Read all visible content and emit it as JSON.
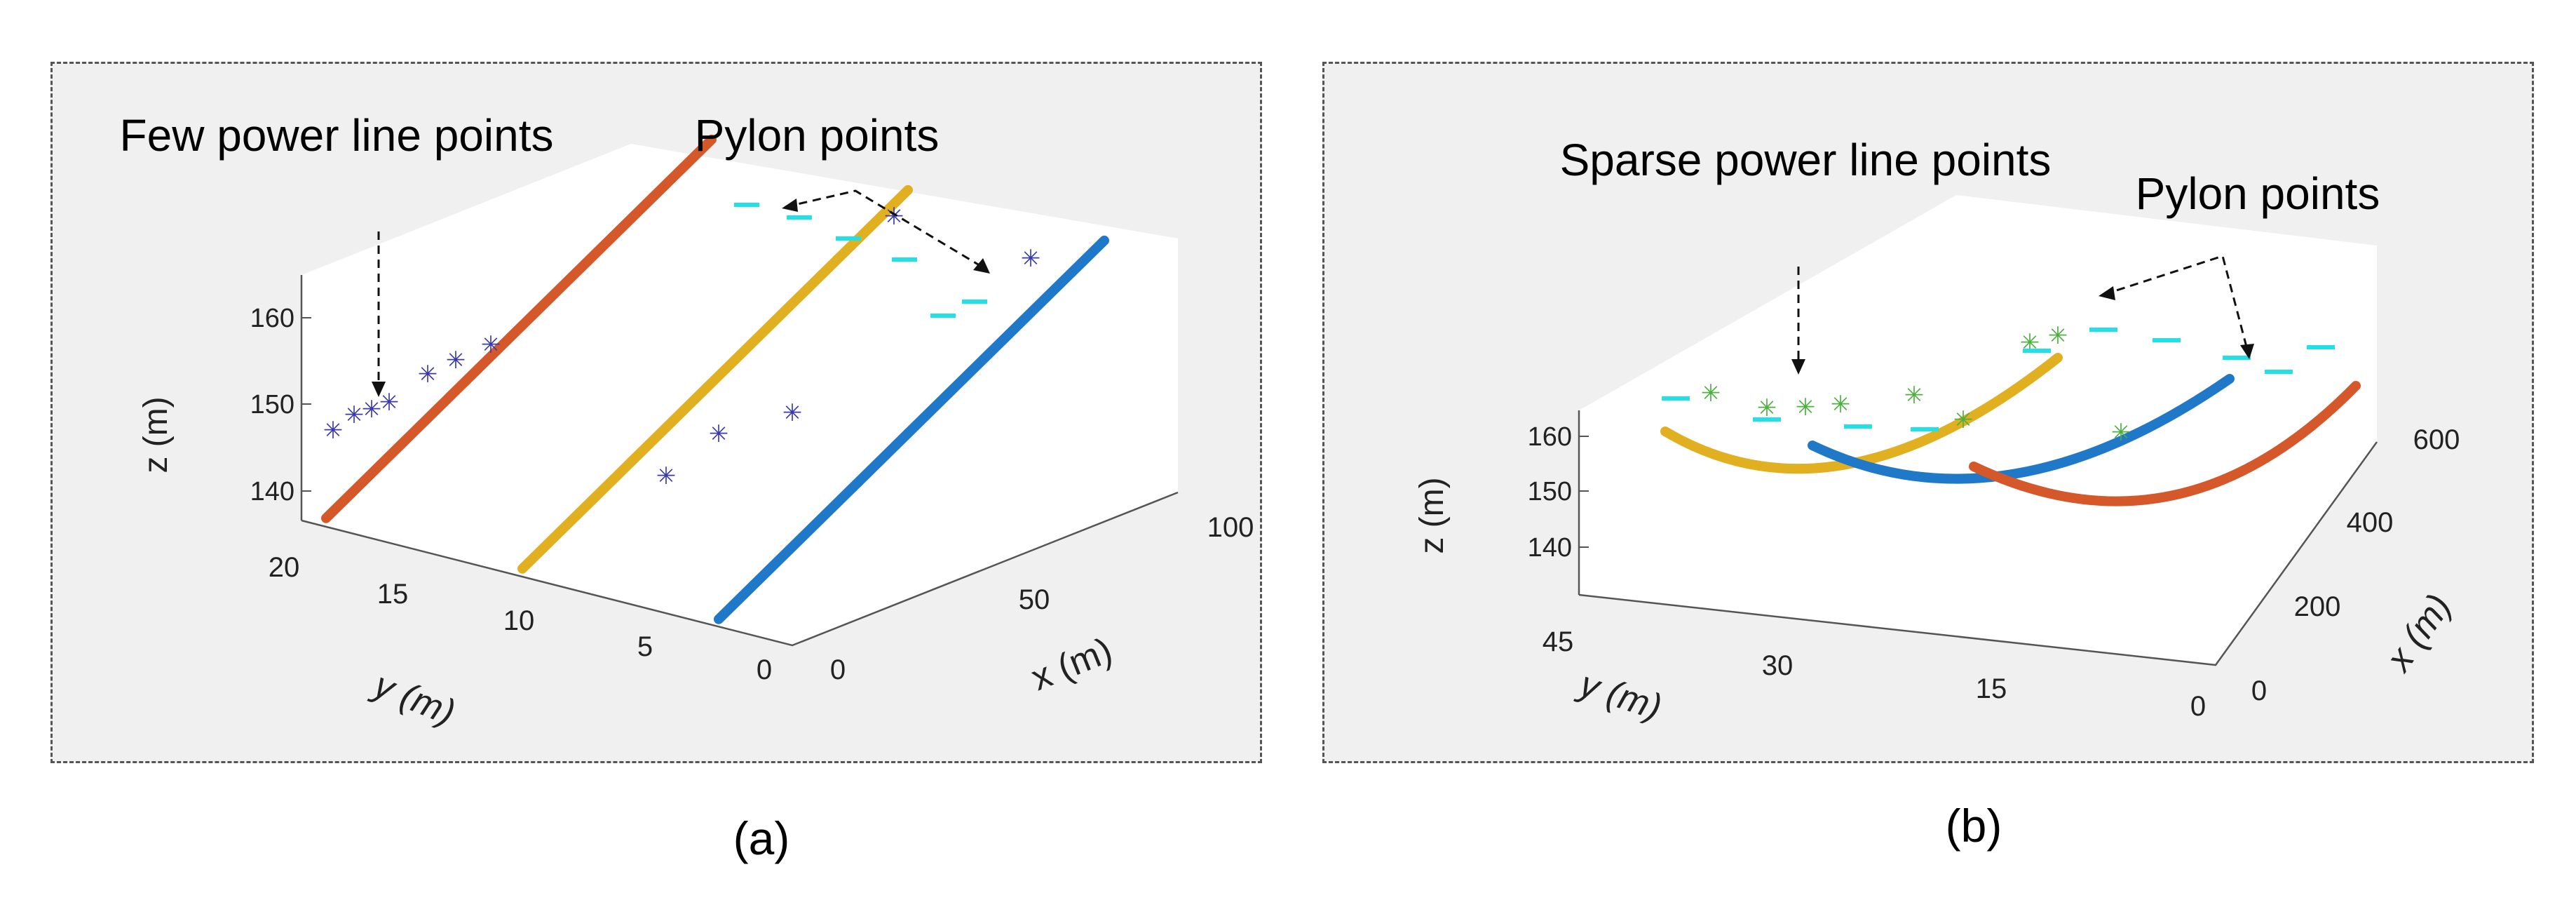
{
  "colors": {
    "orange_red": "#d4582a",
    "gold": "#e0b020",
    "blue": "#1f78c8",
    "cyan": "#22e0e8",
    "green_star": "#4caf3f",
    "navy_star": "#3a3aa8",
    "panel_bg": "#f0f0f0",
    "floor": "#ffffff"
  },
  "chart_data": [
    {
      "type": "scatter",
      "panel_label": "(a)",
      "xlabel": "x (m)",
      "ylabel": "y (m)",
      "zlabel": "z (m)",
      "x_ticks": [
        "0",
        "50",
        "100"
      ],
      "y_ticks": [
        "20",
        "15",
        "10",
        "5",
        "0"
      ],
      "z_ticks": [
        "160",
        "150",
        "140"
      ],
      "xlim": [
        0,
        100
      ],
      "ylim": [
        0,
        20
      ],
      "zlim": [
        135,
        165
      ],
      "annotations": [
        "Few power line points",
        "Pylon points"
      ],
      "series": [
        {
          "color": "orange_red",
          "points": [
            [
              0,
              19,
              136
            ],
            [
              100,
              19,
              162
            ]
          ]
        },
        {
          "color": "gold",
          "points": [
            [
              0,
              11,
              136
            ],
            [
              100,
              11,
              162
            ]
          ]
        },
        {
          "color": "blue",
          "points": [
            [
              0,
              3,
              136
            ],
            [
              100,
              3,
              162
            ]
          ]
        }
      ]
    },
    {
      "type": "scatter",
      "panel_label": "(b)",
      "xlabel": "x (m)",
      "ylabel": "y (m)",
      "zlabel": "z (m)",
      "x_ticks": [
        "0",
        "200",
        "400",
        "600"
      ],
      "y_ticks": [
        "45",
        "30",
        "15",
        "0"
      ],
      "z_ticks": [
        "160",
        "150",
        "140"
      ],
      "xlim": [
        0,
        600
      ],
      "ylim": [
        0,
        45
      ],
      "zlim": [
        135,
        165
      ],
      "annotations": [
        "Sparse power line points",
        "Pylon points"
      ],
      "series": [
        {
          "color": "gold",
          "points": [
            [
              0,
              44,
              160
            ],
            [
              300,
              35,
              148
            ],
            [
              600,
              26,
              160
            ]
          ]
        },
        {
          "color": "blue",
          "points": [
            [
              0,
              30,
              160
            ],
            [
              300,
              23,
              148
            ],
            [
              600,
              16,
              160
            ]
          ]
        },
        {
          "color": "orange_red",
          "points": [
            [
              0,
              20,
              160
            ],
            [
              300,
              12,
              148
            ],
            [
              600,
              5,
              160
            ]
          ]
        }
      ]
    }
  ]
}
